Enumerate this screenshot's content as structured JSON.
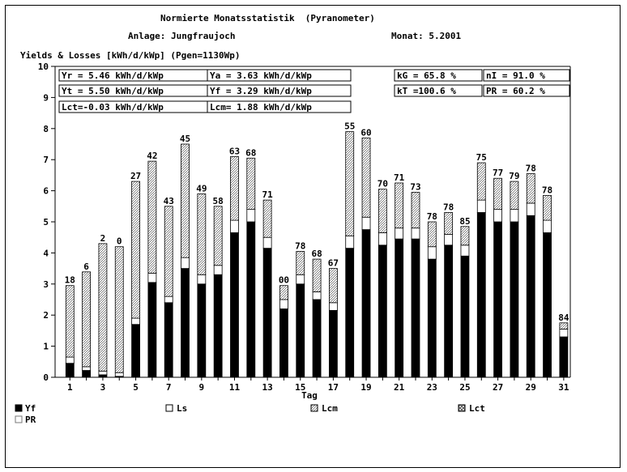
{
  "header": {
    "title": "Normierte Monatsstatistik  (Pyranometer)",
    "plant": "Anlage: Jungfraujoch",
    "month": "Monat: 5.2001"
  },
  "stats": {
    "yr": "Yr = 5.46 kWh/d/kWp",
    "ya": "Ya = 3.63 kWh/d/kWp",
    "kg": "kG = 65.8 %",
    "ni": "nI = 91.0 %",
    "yt": "Yt = 5.50 kWh/d/kWp",
    "yf": "Yf = 3.29 kWh/d/kWp",
    "kt": "kT =100.6 %",
    "pr": "PR = 60.2 %",
    "lct": "Lct=-0.03 kWh/d/kWp",
    "lcm": "Lcm= 1.88 kWh/d/kWp"
  },
  "legend": {
    "yf": "Yf",
    "ls": "Ls",
    "lcm": "Lcm",
    "lct": "Lct",
    "pr": "PR"
  },
  "colors": {
    "yf": "#000000",
    "ls": "#ffffff",
    "loss_pattern": "#999999",
    "axis": "#000000"
  },
  "chart_data": {
    "type": "bar",
    "stacked": true,
    "title": "Yields & Losses [kWh/d/kWp] (Pgen=1130Wp)",
    "xlabel": "Tag",
    "ylabel": "",
    "ylim": [
      0,
      10
    ],
    "yticks": [
      0,
      1,
      2,
      3,
      4,
      5,
      6,
      7,
      8,
      9,
      10
    ],
    "xtick_labels": [
      "1",
      "3",
      "5",
      "7",
      "9",
      "11",
      "13",
      "15",
      "17",
      "19",
      "21",
      "23",
      "25",
      "27",
      "29",
      "31"
    ],
    "categories": [
      1,
      2,
      3,
      4,
      5,
      6,
      7,
      8,
      9,
      10,
      11,
      12,
      13,
      14,
      15,
      16,
      17,
      18,
      19,
      20,
      21,
      22,
      23,
      24,
      25,
      26,
      27,
      28,
      29,
      30,
      31
    ],
    "series": [
      {
        "name": "Yf",
        "values": [
          0.45,
          0.22,
          0.08,
          0.03,
          1.7,
          3.05,
          2.4,
          3.5,
          3.0,
          3.3,
          4.65,
          5.0,
          4.15,
          2.2,
          3.0,
          2.5,
          2.15,
          4.15,
          4.75,
          4.25,
          4.45,
          4.45,
          3.8,
          4.25,
          3.9,
          5.3,
          5.0,
          5.0,
          5.2,
          4.65,
          1.3
        ]
      },
      {
        "name": "Ls",
        "values": [
          0.2,
          0.12,
          0.12,
          0.12,
          0.2,
          0.3,
          0.2,
          0.35,
          0.3,
          0.3,
          0.4,
          0.4,
          0.35,
          0.3,
          0.3,
          0.25,
          0.25,
          0.4,
          0.4,
          0.4,
          0.35,
          0.35,
          0.4,
          0.35,
          0.35,
          0.4,
          0.4,
          0.4,
          0.4,
          0.4,
          0.25
        ]
      },
      {
        "name": "Lcm",
        "values": [
          2.3,
          3.05,
          4.1,
          4.05,
          4.4,
          3.6,
          2.9,
          3.65,
          2.6,
          1.9,
          2.05,
          1.65,
          1.2,
          0.45,
          0.75,
          1.05,
          1.1,
          3.35,
          2.55,
          1.4,
          1.45,
          1.15,
          0.8,
          0.7,
          0.6,
          1.2,
          1.0,
          0.9,
          0.95,
          0.8,
          0.2
        ]
      },
      {
        "name": "Lct",
        "values": [
          0.0,
          0.0,
          0.0,
          0.0,
          0.0,
          0.0,
          0.0,
          0.0,
          0.0,
          0.0,
          0.0,
          0.0,
          0.0,
          0.0,
          0.0,
          0.0,
          0.0,
          0.0,
          0.0,
          0.0,
          0.0,
          0.0,
          0.0,
          0.0,
          0.0,
          0.0,
          0.0,
          0.0,
          0.0,
          0.0,
          0.0
        ]
      }
    ],
    "pr_labels": [
      18,
      6,
      2,
      0,
      27,
      42,
      43,
      45,
      49,
      58,
      63,
      68,
      71,
      0,
      78,
      68,
      67,
      55,
      60,
      70,
      71,
      73,
      78,
      78,
      85,
      75,
      77,
      79,
      78,
      78,
      84
    ],
    "pr_label_text": [
      "18",
      "6",
      "2",
      "0",
      "27",
      "42",
      "43",
      "45",
      "49",
      "58",
      "63",
      "68",
      "71",
      "00",
      "78",
      "68",
      "67",
      "55",
      "60",
      "70",
      "71",
      "73",
      "78",
      "78",
      "85",
      "75",
      "77",
      "79",
      "78",
      "78",
      "84"
    ]
  }
}
